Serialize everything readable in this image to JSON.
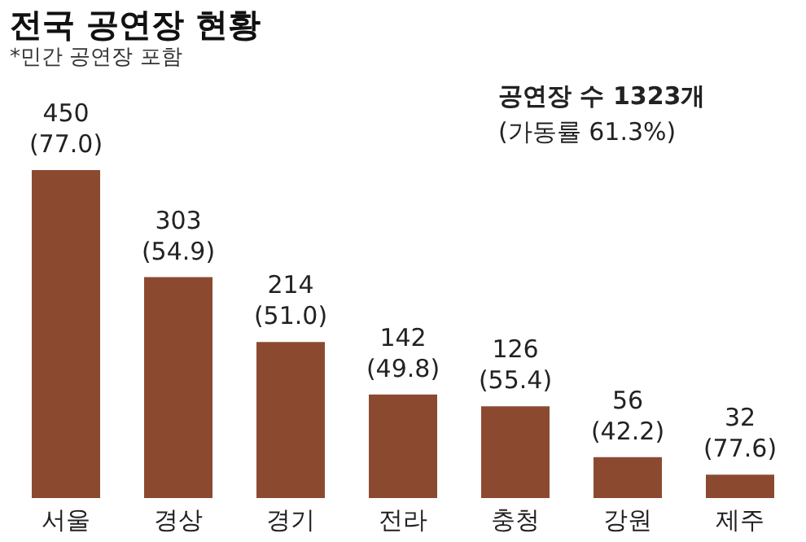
{
  "chart_data": {
    "type": "bar",
    "title": "전국 공연장 현황",
    "subtitle": "*민간 공연장 포함",
    "categories": [
      "서울",
      "경상",
      "경기",
      "전라",
      "충청",
      "강원",
      "제주"
    ],
    "values": [
      450,
      303,
      214,
      142,
      126,
      56,
      32
    ],
    "value_labels": [
      "450\n(77.0)",
      "303\n(54.9)",
      "214\n(51.0)",
      "142\n(49.8)",
      "126\n(55.4)",
      "56\n(42.2)",
      "32\n(77.6)"
    ],
    "color": "#8b4a30",
    "annotations": [
      "공연장 수 1323개",
      "(가동률 61.3%)"
    ],
    "grid": false
  }
}
